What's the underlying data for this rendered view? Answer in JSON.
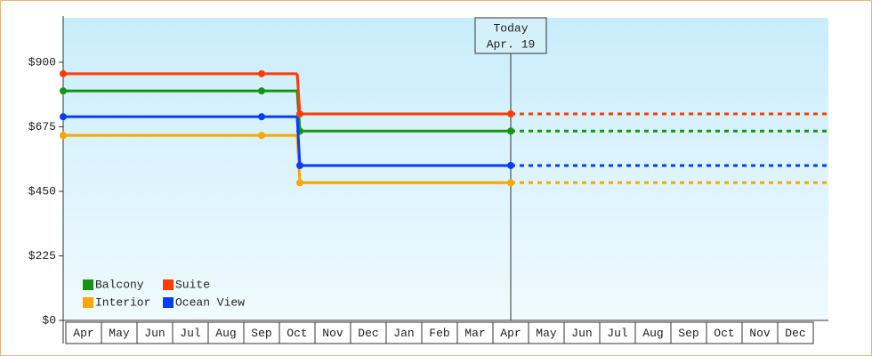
{
  "chart_data": {
    "type": "step-line",
    "categories": [
      "Apr",
      "May",
      "Jun",
      "Jul",
      "Aug",
      "Sep",
      "Oct",
      "Nov",
      "Dec",
      "Jan",
      "Feb",
      "Mar",
      "Apr",
      "May",
      "Jun",
      "Jul",
      "Aug",
      "Sep",
      "Oct",
      "Nov",
      "Dec"
    ],
    "series": [
      {
        "name": "Balcony",
        "color": "#149614",
        "values": [
          800,
          800,
          800,
          800,
          800,
          800,
          660,
          660,
          660,
          660,
          660,
          660,
          660,
          null,
          null,
          null,
          null,
          null,
          null,
          null,
          null
        ]
      },
      {
        "name": "Suite",
        "color": "#ff3c00",
        "values": [
          860,
          860,
          860,
          860,
          860,
          860,
          720,
          720,
          720,
          720,
          720,
          720,
          720,
          null,
          null,
          null,
          null,
          null,
          null,
          null,
          null
        ]
      },
      {
        "name": "Interior",
        "color": "#f5a800",
        "values": [
          645,
          645,
          645,
          645,
          645,
          645,
          480,
          480,
          480,
          480,
          480,
          480,
          480,
          null,
          null,
          null,
          null,
          null,
          null,
          null,
          null
        ]
      },
      {
        "name": "Ocean View",
        "color": "#0a3cff",
        "values": [
          710,
          710,
          710,
          710,
          710,
          710,
          540,
          540,
          540,
          540,
          540,
          540,
          540,
          null,
          null,
          null,
          null,
          null,
          null,
          null,
          null
        ]
      }
    ],
    "ylim": [
      0,
      1055
    ],
    "yticks": [
      {
        "value": 0,
        "label": "$0"
      },
      {
        "value": 225,
        "label": "$225"
      },
      {
        "value": 450,
        "label": "$450"
      },
      {
        "value": 675,
        "label": "$675"
      },
      {
        "value": 900,
        "label": "$900"
      }
    ],
    "grid": false,
    "legend": "lower-left",
    "annotation": {
      "title": "Today",
      "date": "Apr. 19"
    }
  }
}
